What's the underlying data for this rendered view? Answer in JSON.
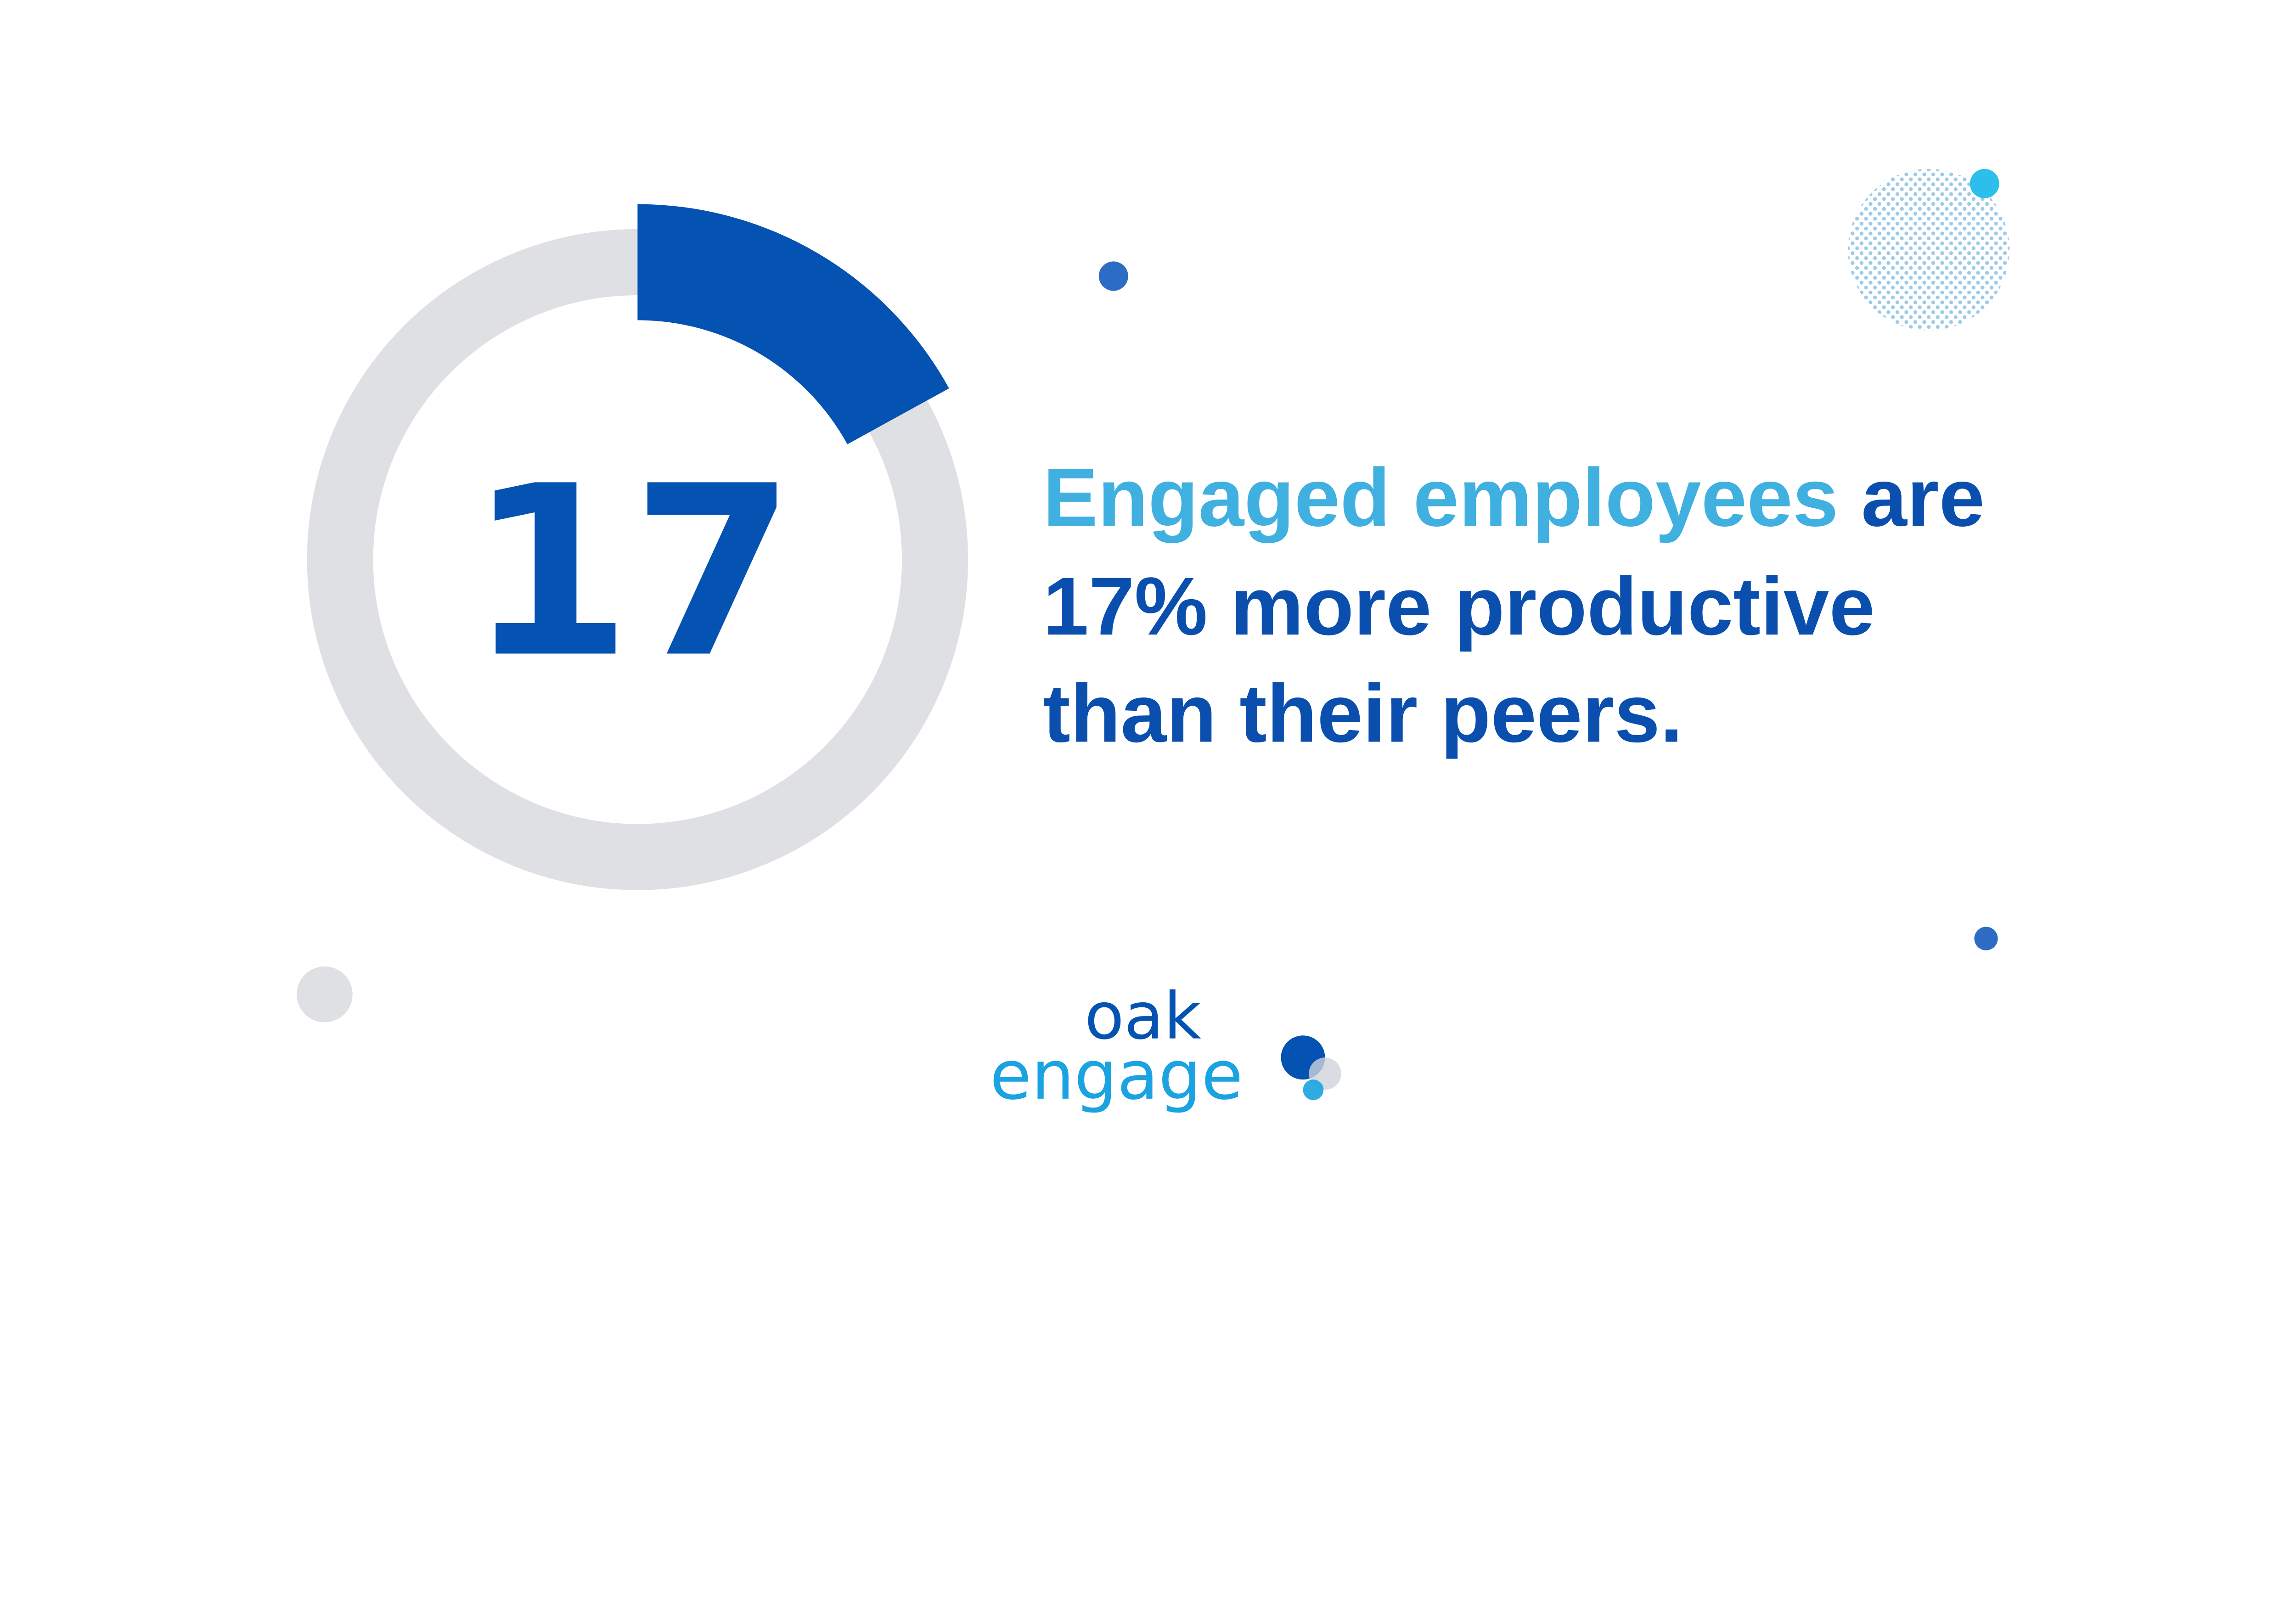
{
  "stat": {
    "value": 17,
    "percent_label": "17",
    "headline_highlight": "Engaged employees",
    "headline_rest_line1": " are",
    "line2": "17% more productive",
    "line3": "than their peers."
  },
  "logo": {
    "line1": "oak",
    "line2": "engage"
  },
  "colors": {
    "dark_blue": "#0452b1",
    "light_blue": "#3fb0e0",
    "ring_gray": "#dfe0e3",
    "accent_cyan": "#2dbfec",
    "dot_pattern": "#9bcbe8"
  }
}
